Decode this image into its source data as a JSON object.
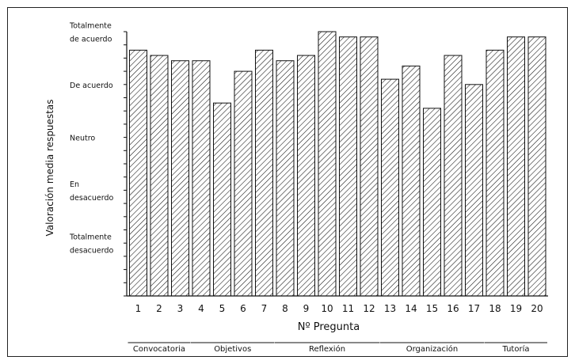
{
  "chart_data": {
    "type": "bar",
    "xlabel": "Nº Pregunta",
    "ylabel": "Valoración media respuestas",
    "ylim": [
      0,
      5
    ],
    "y_scale_levels": [
      {
        "value": 1,
        "label_lines": [
          "Totalmente",
          "desacuerdo"
        ]
      },
      {
        "value": 2,
        "label_lines": [
          "En",
          "desacuerdo"
        ]
      },
      {
        "value": 3,
        "label_lines": [
          "Neutro"
        ]
      },
      {
        "value": 4,
        "label_lines": [
          "De acuerdo"
        ]
      },
      {
        "value": 5,
        "label_lines": [
          "Totalmente",
          "de acuerdo"
        ]
      }
    ],
    "categories": [
      "1",
      "2",
      "3",
      "4",
      "5",
      "6",
      "7",
      "8",
      "9",
      "10",
      "11",
      "12",
      "13",
      "14",
      "15",
      "16",
      "17",
      "18",
      "19",
      "20"
    ],
    "values": [
      4.65,
      4.55,
      4.45,
      4.45,
      3.65,
      4.25,
      4.65,
      4.45,
      4.55,
      5.0,
      4.9,
      4.9,
      4.1,
      4.35,
      3.55,
      4.55,
      4.0,
      4.65,
      4.9,
      4.9
    ],
    "groups": [
      {
        "label": "Convocatoria",
        "from": 1,
        "to": 3
      },
      {
        "label": "Objetivos",
        "from": 4,
        "to": 7
      },
      {
        "label": "Reflexión",
        "from": 8,
        "to": 12
      },
      {
        "label": "Organización",
        "from": 13,
        "to": 17
      },
      {
        "label": "Tutoría",
        "from": 18,
        "to": 20
      }
    ],
    "bar_fill": "diagonal-hatch",
    "bar_color": "#111111",
    "background_color": "#ffffff",
    "grid": false,
    "legend": "none"
  }
}
